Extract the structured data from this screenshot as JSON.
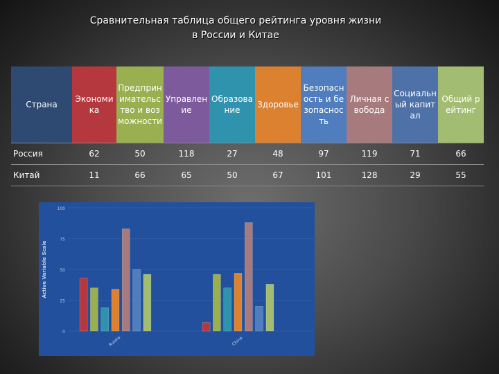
{
  "title_lines": [
    "Сравнительная таблица общего рейтинга уровня жизни",
    "в России и Китае"
  ],
  "table": {
    "headers": [
      {
        "label": "Страна",
        "color": "#2e4a73"
      },
      {
        "label": "Экономика",
        "color": "#b5383f"
      },
      {
        "label": "Предпринимательство и возможности",
        "color": "#9aaf4f"
      },
      {
        "label": "Управление",
        "color": "#7c5a9b"
      },
      {
        "label": "Образование",
        "color": "#2f93ad"
      },
      {
        "label": "Здоровье",
        "color": "#dc8130"
      },
      {
        "label": "Безопасность и безопасность",
        "color": "#4f7dbd"
      },
      {
        "label": "Личная свобода",
        "color": "#a77b7e"
      },
      {
        "label": "Социальный капитал",
        "color": "#4e72a8"
      },
      {
        "label": "Общий рейтинг",
        "color": "#a2bd72"
      }
    ],
    "rows": [
      {
        "country": "Россия",
        "values": [
          "62",
          "50",
          "118",
          "27",
          "48",
          "97",
          "119",
          "71",
          "66"
        ]
      },
      {
        "country": "Китай",
        "values": [
          "11",
          "66",
          "65",
          "50",
          "67",
          "101",
          "128",
          "29",
          "55"
        ]
      }
    ]
  },
  "chart_data": {
    "type": "bar",
    "ylabel": "Active Variable Scale",
    "ylim": [
      0,
      100
    ],
    "yticks": [
      0,
      25,
      50,
      75,
      100
    ],
    "categories": [
      "Russia",
      "China"
    ],
    "background": "#22509c",
    "series": [
      {
        "color": "#b5383f",
        "values": [
          43,
          7
        ]
      },
      {
        "color": "#9aaf4f",
        "values": [
          35,
          46
        ]
      },
      {
        "color": "#2f93ad",
        "values": [
          19,
          35
        ]
      },
      {
        "color": "#dc8130",
        "values": [
          34,
          47
        ]
      },
      {
        "color": "#a77b7e",
        "values": [
          83,
          88
        ]
      },
      {
        "color": "#4f7dbd",
        "values": [
          50,
          20
        ]
      },
      {
        "color": "#a2bd72",
        "values": [
          46,
          38
        ]
      }
    ]
  }
}
